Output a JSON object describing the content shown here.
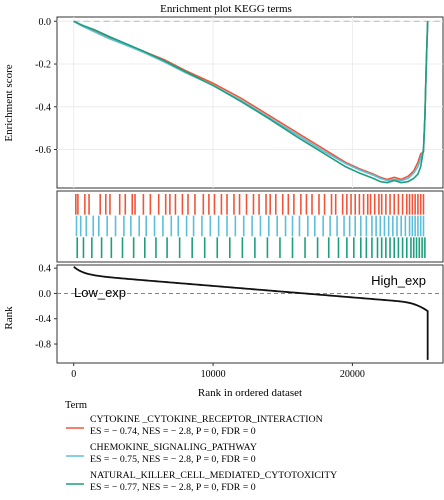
{
  "chart_data": {
    "type": "line",
    "title": "Enrichment plot KEGG terms",
    "xlabel": "Rank in ordered dataset",
    "panels": {
      "enrichment": {
        "ylabel": "Enrichment score",
        "ylim": [
          -0.78,
          0.02
        ],
        "yticks": [
          "0.0",
          "-0.2",
          "-0.4",
          "-0.6"
        ],
        "ytick_values": [
          0.0,
          -0.2,
          -0.4,
          -0.6
        ],
        "grid": true
      },
      "rank": {
        "ylabel": "Rank",
        "ylim": [
          -1.1,
          0.45
        ],
        "yticks": [
          "0.4",
          "0.0",
          "-0.4",
          "-0.8"
        ],
        "ytick_values": [
          0.4,
          0.0,
          -0.4,
          -0.8
        ],
        "low_label": "Low_exp",
        "high_label": "High_exp"
      }
    },
    "xlim": [
      -1200,
      26500
    ],
    "xticks": [
      "0",
      "10000",
      "20000"
    ],
    "xtick_values": [
      0,
      10000,
      20000
    ],
    "series": [
      {
        "name": "CYTOKINE _CYTOKINE_RECEPTOR_INTERACTION",
        "stats": "ES = − 0.74, NES = − 2.8, P = 0, FDR = 0",
        "color": "#f0553a",
        "x": [
          0,
          600,
          1500,
          2500,
          3500,
          5000,
          6500,
          8000,
          10000,
          12000,
          14000,
          16000,
          18000,
          19500,
          20500,
          21500,
          22000,
          22500,
          23000,
          23500,
          24000,
          24400,
          24700,
          24900,
          25100,
          25200,
          25300,
          25400
        ],
        "y": [
          0.0,
          -0.02,
          -0.045,
          -0.075,
          -0.1,
          -0.14,
          -0.18,
          -0.23,
          -0.29,
          -0.36,
          -0.44,
          -0.52,
          -0.6,
          -0.66,
          -0.69,
          -0.715,
          -0.73,
          -0.74,
          -0.73,
          -0.74,
          -0.725,
          -0.7,
          -0.66,
          -0.62,
          -0.61,
          -0.45,
          -0.2,
          0.0
        ]
      },
      {
        "name": "CHEMOKINE_SIGNALING_PATHWAY",
        "stats": "ES = − 0.75, NES = − 2.8, P = 0, FDR = 0",
        "color": "#5bbfd9",
        "x": [
          0,
          600,
          1500,
          2500,
          3500,
          5000,
          6500,
          8000,
          10000,
          12000,
          14000,
          16000,
          18000,
          19500,
          20500,
          21500,
          22000,
          22500,
          23000,
          23500,
          24000,
          24400,
          24700,
          24900,
          25100,
          25200,
          25300,
          25400
        ],
        "y": [
          0.0,
          -0.022,
          -0.05,
          -0.08,
          -0.105,
          -0.145,
          -0.19,
          -0.24,
          -0.3,
          -0.37,
          -0.45,
          -0.53,
          -0.61,
          -0.665,
          -0.695,
          -0.72,
          -0.735,
          -0.745,
          -0.74,
          -0.745,
          -0.735,
          -0.71,
          -0.68,
          -0.64,
          -0.6,
          -0.45,
          -0.2,
          0.0
        ]
      },
      {
        "name": "NATURAL_KILLER_CELL_MEDIATED_CYTOTOXICITY",
        "stats": "ES = − 0.77, NES = − 2.8, P = 0, FDR = 0",
        "color": "#1f9e7d",
        "x": [
          0,
          600,
          1500,
          2500,
          3500,
          5000,
          6500,
          8000,
          10000,
          12000,
          14000,
          16000,
          18000,
          19500,
          20500,
          21500,
          22000,
          22500,
          23000,
          23500,
          24000,
          24400,
          24700,
          24900,
          25100,
          25200,
          25300,
          25400
        ],
        "y": [
          0.0,
          -0.018,
          -0.04,
          -0.07,
          -0.098,
          -0.14,
          -0.185,
          -0.235,
          -0.3,
          -0.375,
          -0.455,
          -0.54,
          -0.62,
          -0.68,
          -0.71,
          -0.735,
          -0.75,
          -0.755,
          -0.745,
          -0.755,
          -0.75,
          -0.735,
          -0.715,
          -0.68,
          -0.6,
          -0.45,
          -0.2,
          0.0
        ]
      }
    ],
    "hits": [
      {
        "name": "CYTOKINE _CYTOKINE_RECEPTOR_INTERACTION",
        "color": "#f0553a",
        "x": [
          150,
          300,
          800,
          1100,
          1900,
          2300,
          2600,
          3300,
          3700,
          4200,
          4400,
          5000,
          5500,
          6100,
          6600,
          6900,
          7300,
          7800,
          8200,
          8700,
          9300,
          9700,
          10100,
          10600,
          11000,
          11500,
          11900,
          12400,
          12900,
          13300,
          13800,
          14100,
          14500,
          15000,
          15400,
          15800,
          16300,
          16700,
          17100,
          17600,
          18000,
          18500,
          18800,
          19300,
          19600,
          19900,
          20200,
          20500,
          20800,
          21100,
          21300,
          21600,
          21900,
          22100,
          22400,
          22700,
          23000,
          23300,
          23600,
          23900,
          24100,
          24300,
          24500,
          24700,
          24900,
          25100
        ]
      },
      {
        "name": "CHEMOKINE_SIGNALING_PATHWAY",
        "color": "#5bbfd9",
        "x": [
          200,
          500,
          900,
          1400,
          1800,
          2400,
          3000,
          3600,
          4100,
          4700,
          5200,
          5800,
          6400,
          7000,
          7500,
          8100,
          8600,
          9200,
          9800,
          10400,
          11000,
          11600,
          12200,
          12800,
          13400,
          14000,
          14600,
          15200,
          15700,
          16200,
          16800,
          17300,
          17900,
          18400,
          18900,
          19400,
          19800,
          20200,
          20600,
          21000,
          21400,
          21700,
          22000,
          22300,
          22600,
          22900,
          23200,
          23500,
          23800,
          24100,
          24300,
          24500,
          24700,
          24900,
          25100
        ]
      },
      {
        "name": "NATURAL_KILLER_CELL_MEDIATED_CYTOTOXICITY",
        "color": "#1f9e7d",
        "x": [
          250,
          700,
          1300,
          2000,
          2700,
          3500,
          4300,
          5100,
          5900,
          6700,
          7600,
          8500,
          9400,
          10300,
          11200,
          12100,
          13000,
          13900,
          14800,
          15700,
          16600,
          17500,
          18300,
          19000,
          19600,
          20100,
          20600,
          21000,
          21400,
          21800,
          22100,
          22400,
          22700,
          23000,
          23300,
          23600,
          23900,
          24200,
          24400,
          24600,
          24800,
          25000,
          25200
        ]
      }
    ],
    "legend": {
      "title": "Term",
      "placement": "bottom"
    }
  }
}
